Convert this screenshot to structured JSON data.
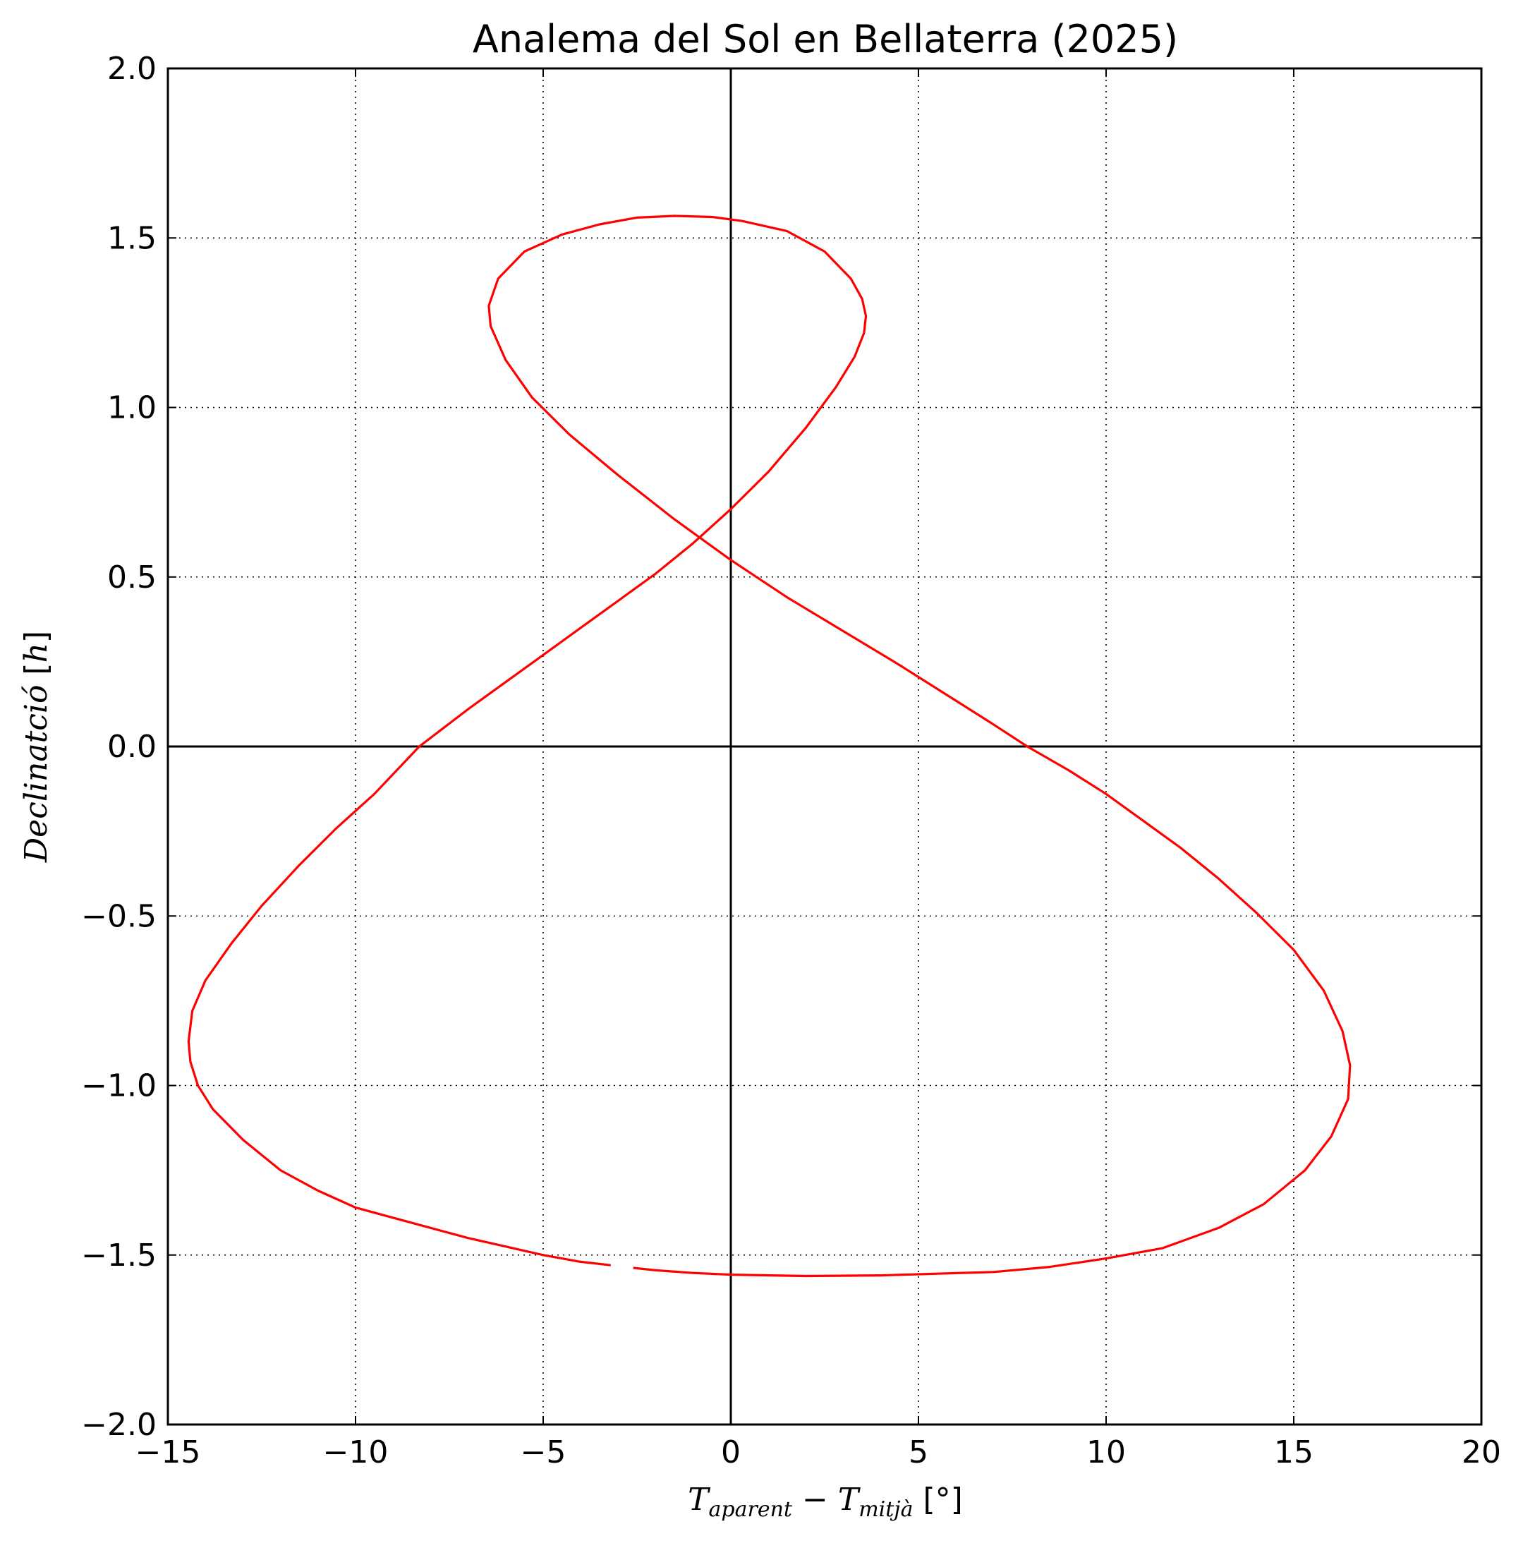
{
  "chart_data": {
    "type": "line",
    "title": "Analema del Sol en Bellaterra (2025)",
    "xlabel": {
      "parts": [
        {
          "text": "T",
          "style": "italic"
        },
        {
          "text": "aparent",
          "style": "sub"
        },
        {
          "text": " − ",
          "style": "upright"
        },
        {
          "text": "T",
          "style": "italic"
        },
        {
          "text": "mitjà",
          "style": "sub"
        },
        {
          "text": " [°]",
          "style": "upright"
        }
      ]
    },
    "ylabel": {
      "parts": [
        {
          "text": "Declinatció",
          "style": "italic"
        },
        {
          "text": " [",
          "style": "upright"
        },
        {
          "text": "h",
          "style": "italic"
        },
        {
          "text": "]",
          "style": "upright"
        }
      ]
    },
    "xlim": [
      -15,
      20
    ],
    "ylim": [
      -2.0,
      2.0
    ],
    "xticks": [
      -15,
      -10,
      -5,
      0,
      5,
      10,
      15,
      20
    ],
    "yticks": [
      -2.0,
      -1.5,
      -1.0,
      -0.5,
      0.0,
      0.5,
      1.0,
      1.5,
      2.0
    ],
    "xtick_labels": [
      "−15",
      "−10",
      "−5",
      "0",
      "5",
      "10",
      "15",
      "20"
    ],
    "ytick_labels": [
      "−2.0",
      "−1.5",
      "−1.0",
      "−0.5",
      "0.0",
      "0.5",
      "1.0",
      "1.5",
      "2.0"
    ],
    "grid": true,
    "grid_style": "dotted",
    "zero_lines": true,
    "colors": {
      "series": "#ff0000",
      "axes": "#000000",
      "grid": "#000000"
    },
    "series": [
      {
        "points": [
          [
            -3.2,
            -1.53
          ],
          [
            -4.0,
            -1.52
          ],
          [
            -5.0,
            -1.5
          ],
          [
            -6.0,
            -1.475
          ],
          [
            -7.0,
            -1.45
          ],
          [
            -8.0,
            -1.42
          ],
          [
            -9.0,
            -1.39
          ],
          [
            -10.0,
            -1.36
          ],
          [
            -11.0,
            -1.31
          ],
          [
            -12.0,
            -1.25
          ],
          [
            -13.0,
            -1.16
          ],
          [
            -13.8,
            -1.07
          ],
          [
            -14.2,
            -1.0
          ],
          [
            -14.4,
            -0.93
          ],
          [
            -14.45,
            -0.87
          ],
          [
            -14.35,
            -0.78
          ],
          [
            -14.0,
            -0.69
          ],
          [
            -13.3,
            -0.58
          ],
          [
            -12.5,
            -0.47
          ],
          [
            -11.5,
            -0.35
          ],
          [
            -10.5,
            -0.24
          ],
          [
            -9.5,
            -0.14
          ],
          [
            -8.3,
            0.0
          ],
          [
            -7.0,
            0.11
          ],
          [
            -6.0,
            0.19
          ],
          [
            -5.0,
            0.27
          ],
          [
            -4.0,
            0.35
          ],
          [
            -3.0,
            0.43
          ],
          [
            -2.0,
            0.51
          ],
          [
            -1.0,
            0.6
          ],
          [
            0.0,
            0.7
          ],
          [
            1.0,
            0.81
          ],
          [
            2.0,
            0.94
          ],
          [
            2.8,
            1.06
          ],
          [
            3.3,
            1.15
          ],
          [
            3.55,
            1.22
          ],
          [
            3.6,
            1.27
          ],
          [
            3.5,
            1.32
          ],
          [
            3.2,
            1.38
          ],
          [
            2.5,
            1.46
          ],
          [
            1.5,
            1.52
          ],
          [
            0.3,
            1.55
          ],
          [
            -0.5,
            1.562
          ],
          [
            -1.5,
            1.565
          ],
          [
            -2.5,
            1.56
          ],
          [
            -3.5,
            1.54
          ],
          [
            -4.5,
            1.51
          ],
          [
            -5.5,
            1.46
          ],
          [
            -6.2,
            1.38
          ],
          [
            -6.45,
            1.3
          ],
          [
            -6.4,
            1.24
          ],
          [
            -6.0,
            1.14
          ],
          [
            -5.3,
            1.03
          ],
          [
            -4.3,
            0.92
          ],
          [
            -3.0,
            0.8
          ],
          [
            -1.5,
            0.67
          ],
          [
            0.0,
            0.55
          ],
          [
            1.5,
            0.44
          ],
          [
            3.0,
            0.34
          ],
          [
            4.5,
            0.24
          ],
          [
            6.0,
            0.135
          ],
          [
            7.0,
            0.065
          ],
          [
            7.9,
            0.0
          ],
          [
            9.0,
            -0.07
          ],
          [
            10.0,
            -0.14
          ],
          [
            11.0,
            -0.22
          ],
          [
            12.0,
            -0.3
          ],
          [
            13.0,
            -0.39
          ],
          [
            14.0,
            -0.49
          ],
          [
            15.0,
            -0.6
          ],
          [
            15.8,
            -0.72
          ],
          [
            16.3,
            -0.84
          ],
          [
            16.5,
            -0.94
          ],
          [
            16.45,
            -1.04
          ],
          [
            16.0,
            -1.15
          ],
          [
            15.3,
            -1.25
          ],
          [
            14.2,
            -1.35
          ],
          [
            13.0,
            -1.42
          ],
          [
            11.5,
            -1.48
          ],
          [
            10.0,
            -1.51
          ],
          [
            8.5,
            -1.535
          ],
          [
            7.0,
            -1.55
          ],
          [
            5.5,
            -1.555
          ],
          [
            4.0,
            -1.56
          ],
          [
            2.0,
            -1.562
          ],
          [
            0.0,
            -1.558
          ],
          [
            -1.0,
            -1.553
          ],
          [
            -2.0,
            -1.545
          ],
          [
            -2.6,
            -1.538
          ]
        ]
      }
    ]
  }
}
